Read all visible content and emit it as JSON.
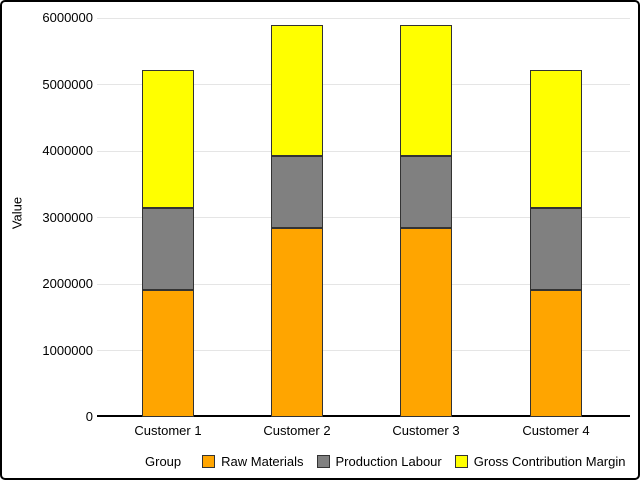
{
  "chart_data": {
    "type": "bar",
    "stacked": true,
    "title": "",
    "xlabel": "",
    "ylabel": "Value",
    "legend_title": "Group",
    "legend_position": "bottom",
    "grid": true,
    "ylim": [
      0,
      6000000
    ],
    "yticks": [
      0,
      1000000,
      2000000,
      3000000,
      4000000,
      5000000,
      6000000
    ],
    "categories": [
      "Customer 1",
      "Customer 2",
      "Customer 3",
      "Customer 4"
    ],
    "series": [
      {
        "name": "Raw Materials",
        "color": "#FFA500",
        "values": [
          1910000,
          2840000,
          2840000,
          1910000
        ]
      },
      {
        "name": "Production Labour",
        "color": "#808080",
        "values": [
          1240000,
          1090000,
          1090000,
          1240000
        ]
      },
      {
        "name": "Gross Contribution Margin",
        "color": "#FFFF00",
        "values": [
          2070000,
          1970000,
          1970000,
          2070000
        ]
      }
    ],
    "totals": [
      5220000,
      5900000,
      5900000,
      5220000
    ]
  },
  "colors": {
    "background": "#FFFFFF",
    "chart_border": "#000000",
    "gridline": "#E5E5E5",
    "axis_line": "#000000",
    "bar_border": "#333333",
    "text": "#000000"
  }
}
